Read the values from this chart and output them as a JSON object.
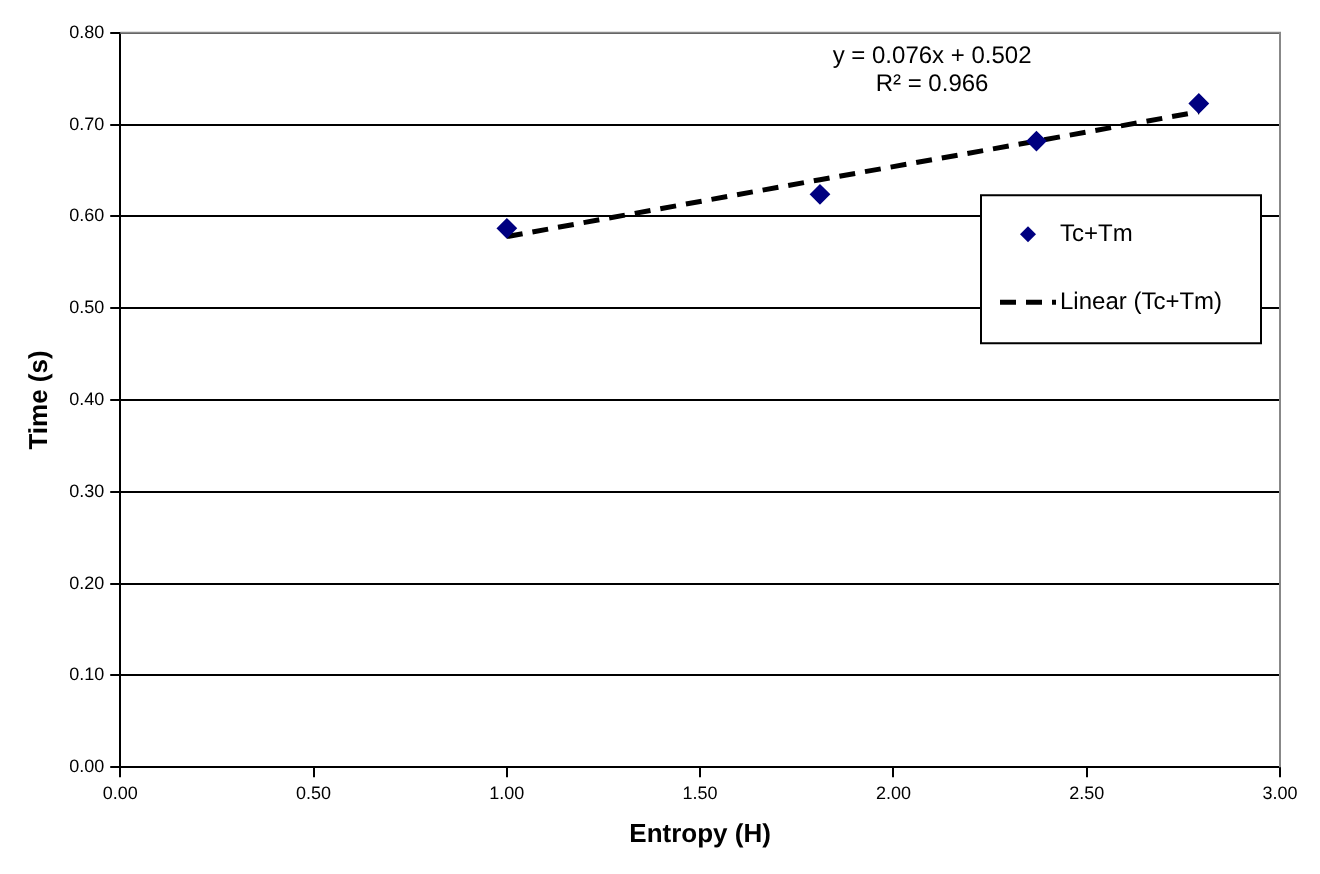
{
  "chart_data": {
    "type": "scatter",
    "xlabel": "Entropy (H)",
    "ylabel": "Time (s)",
    "xlim": [
      0,
      3
    ],
    "xticks": [
      {
        "value": 0,
        "label": "0.00"
      },
      {
        "value": 0.5,
        "label": "0.50"
      },
      {
        "value": 1,
        "label": "1.00"
      },
      {
        "value": 1.5,
        "label": "1.50"
      },
      {
        "value": 2,
        "label": "2.00"
      },
      {
        "value": 2.5,
        "label": "2.50"
      },
      {
        "value": 3,
        "label": "3.00"
      }
    ],
    "ylim": [
      0,
      0.8
    ],
    "yticks": [
      {
        "value": 0,
        "label": "0.00"
      },
      {
        "value": 0.1,
        "label": "0.10"
      },
      {
        "value": 0.2,
        "label": "0.20"
      },
      {
        "value": 0.3,
        "label": "0.30"
      },
      {
        "value": 0.4,
        "label": "0.40"
      },
      {
        "value": 0.5,
        "label": "0.50"
      },
      {
        "value": 0.6,
        "label": "0.60"
      },
      {
        "value": 0.7,
        "label": "0.70"
      },
      {
        "value": 0.8,
        "label": "0.80"
      }
    ],
    "grid": "y",
    "legend": "right",
    "marker": "diamond",
    "series": [
      {
        "name": "Tc+Tm",
        "type": "scatter",
        "color": "#000080",
        "x": [
          1.0,
          1.81,
          2.37,
          2.79
        ],
        "values": [
          0.587,
          0.624,
          0.682,
          0.723
        ]
      },
      {
        "name": "Linear (Tc+Tm)",
        "type": "line",
        "color": "#000000",
        "line_style": "dashed",
        "marker": "none",
        "x": [
          1.0,
          1.81,
          2.37,
          2.79
        ],
        "values": [
          0.578,
          0.64,
          0.682,
          0.714
        ]
      }
    ],
    "annotations": [
      "y = 0.076x + 0.502",
      "R² = 0.966"
    ]
  }
}
